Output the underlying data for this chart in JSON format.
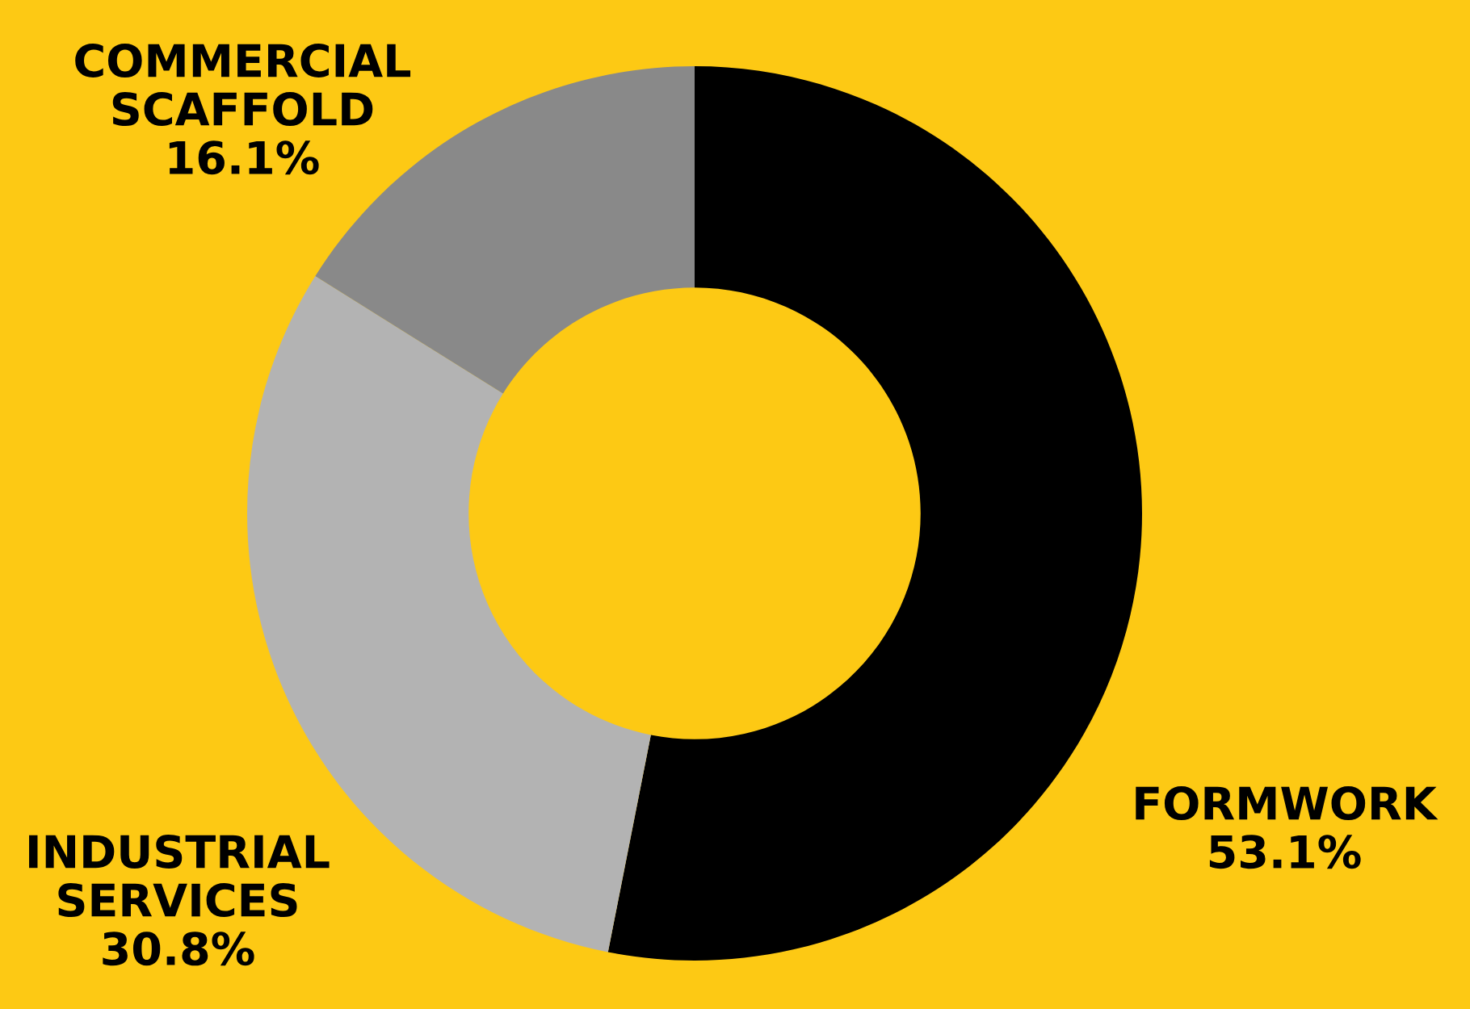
{
  "chart_data": {
    "type": "donut",
    "categories": [
      "FORMWORK",
      "INDUSTRIAL\nSERVICES",
      "COMMERCIAL\nSCAFFOLD"
    ],
    "values": [
      53.1,
      30.8,
      16.1
    ],
    "colors": [
      "#000000",
      "#b3b3b3",
      "#898989"
    ],
    "value_labels": [
      "53.1%",
      "30.8%",
      "16.1%"
    ]
  }
}
